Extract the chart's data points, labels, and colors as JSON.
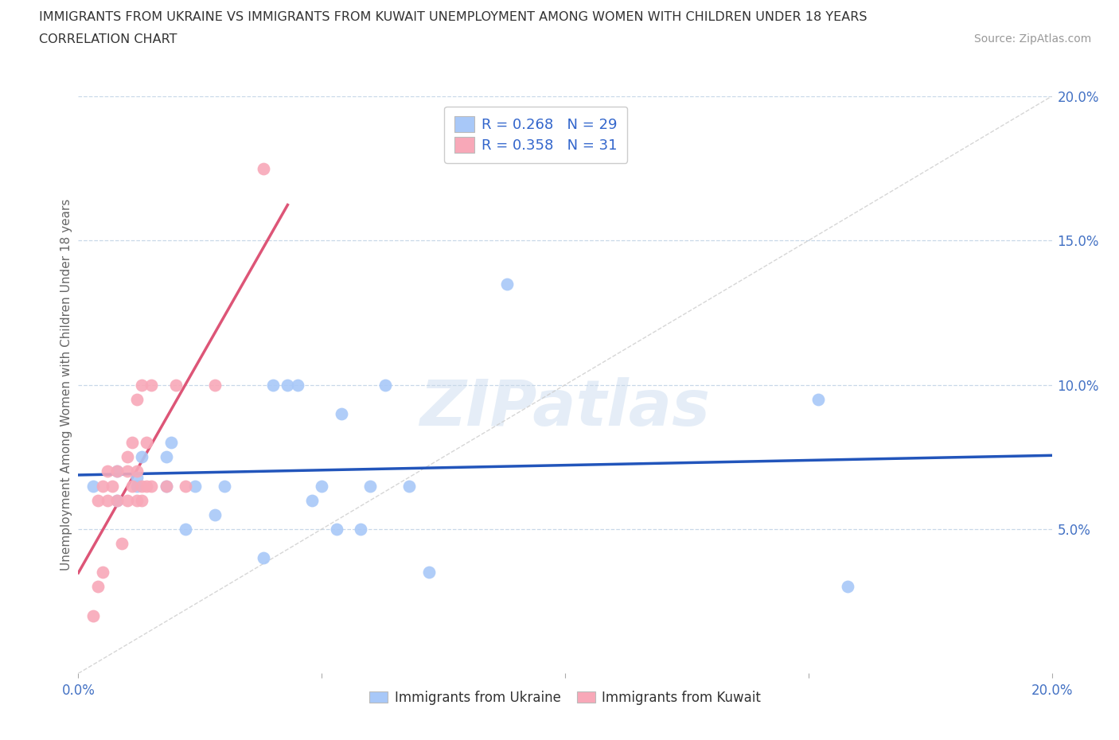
{
  "title_line1": "IMMIGRANTS FROM UKRAINE VS IMMIGRANTS FROM KUWAIT UNEMPLOYMENT AMONG WOMEN WITH CHILDREN UNDER 18 YEARS",
  "title_line2": "CORRELATION CHART",
  "source_text": "Source: ZipAtlas.com",
  "ylabel": "Unemployment Among Women with Children Under 18 years",
  "xlim": [
    0.0,
    0.2
  ],
  "ylim": [
    0.0,
    0.2
  ],
  "xticks": [
    0.0,
    0.05,
    0.1,
    0.15,
    0.2
  ],
  "yticks": [
    0.05,
    0.1,
    0.15,
    0.2
  ],
  "xtick_labels": [
    "0.0%",
    "",
    "",
    "",
    "20.0%"
  ],
  "ytick_labels": [
    "5.0%",
    "10.0%",
    "15.0%",
    "20.0%"
  ],
  "ukraine_color": "#a8c8f8",
  "kuwait_color": "#f8a8b8",
  "ukraine_line_color": "#2255bb",
  "kuwait_line_color": "#dd5577",
  "diagonal_color": "#cccccc",
  "watermark": "ZIPatlas",
  "ukraine_x": [
    0.003,
    0.008,
    0.008,
    0.012,
    0.012,
    0.013,
    0.018,
    0.018,
    0.019,
    0.022,
    0.024,
    0.028,
    0.03,
    0.038,
    0.04,
    0.043,
    0.045,
    0.048,
    0.05,
    0.053,
    0.054,
    0.058,
    0.06,
    0.063,
    0.068,
    0.072,
    0.088,
    0.152,
    0.158
  ],
  "ukraine_y": [
    0.065,
    0.06,
    0.07,
    0.065,
    0.068,
    0.075,
    0.065,
    0.075,
    0.08,
    0.05,
    0.065,
    0.055,
    0.065,
    0.04,
    0.1,
    0.1,
    0.1,
    0.06,
    0.065,
    0.05,
    0.09,
    0.05,
    0.065,
    0.1,
    0.065,
    0.035,
    0.135,
    0.095,
    0.03
  ],
  "kuwait_x": [
    0.003,
    0.004,
    0.004,
    0.005,
    0.005,
    0.006,
    0.006,
    0.007,
    0.008,
    0.008,
    0.009,
    0.01,
    0.01,
    0.01,
    0.011,
    0.011,
    0.012,
    0.012,
    0.012,
    0.013,
    0.013,
    0.013,
    0.014,
    0.014,
    0.015,
    0.015,
    0.018,
    0.02,
    0.022,
    0.028,
    0.038
  ],
  "kuwait_y": [
    0.02,
    0.03,
    0.06,
    0.035,
    0.065,
    0.06,
    0.07,
    0.065,
    0.06,
    0.07,
    0.045,
    0.06,
    0.07,
    0.075,
    0.065,
    0.08,
    0.06,
    0.07,
    0.095,
    0.06,
    0.065,
    0.1,
    0.065,
    0.08,
    0.065,
    0.1,
    0.065,
    0.1,
    0.065,
    0.1,
    0.175
  ]
}
